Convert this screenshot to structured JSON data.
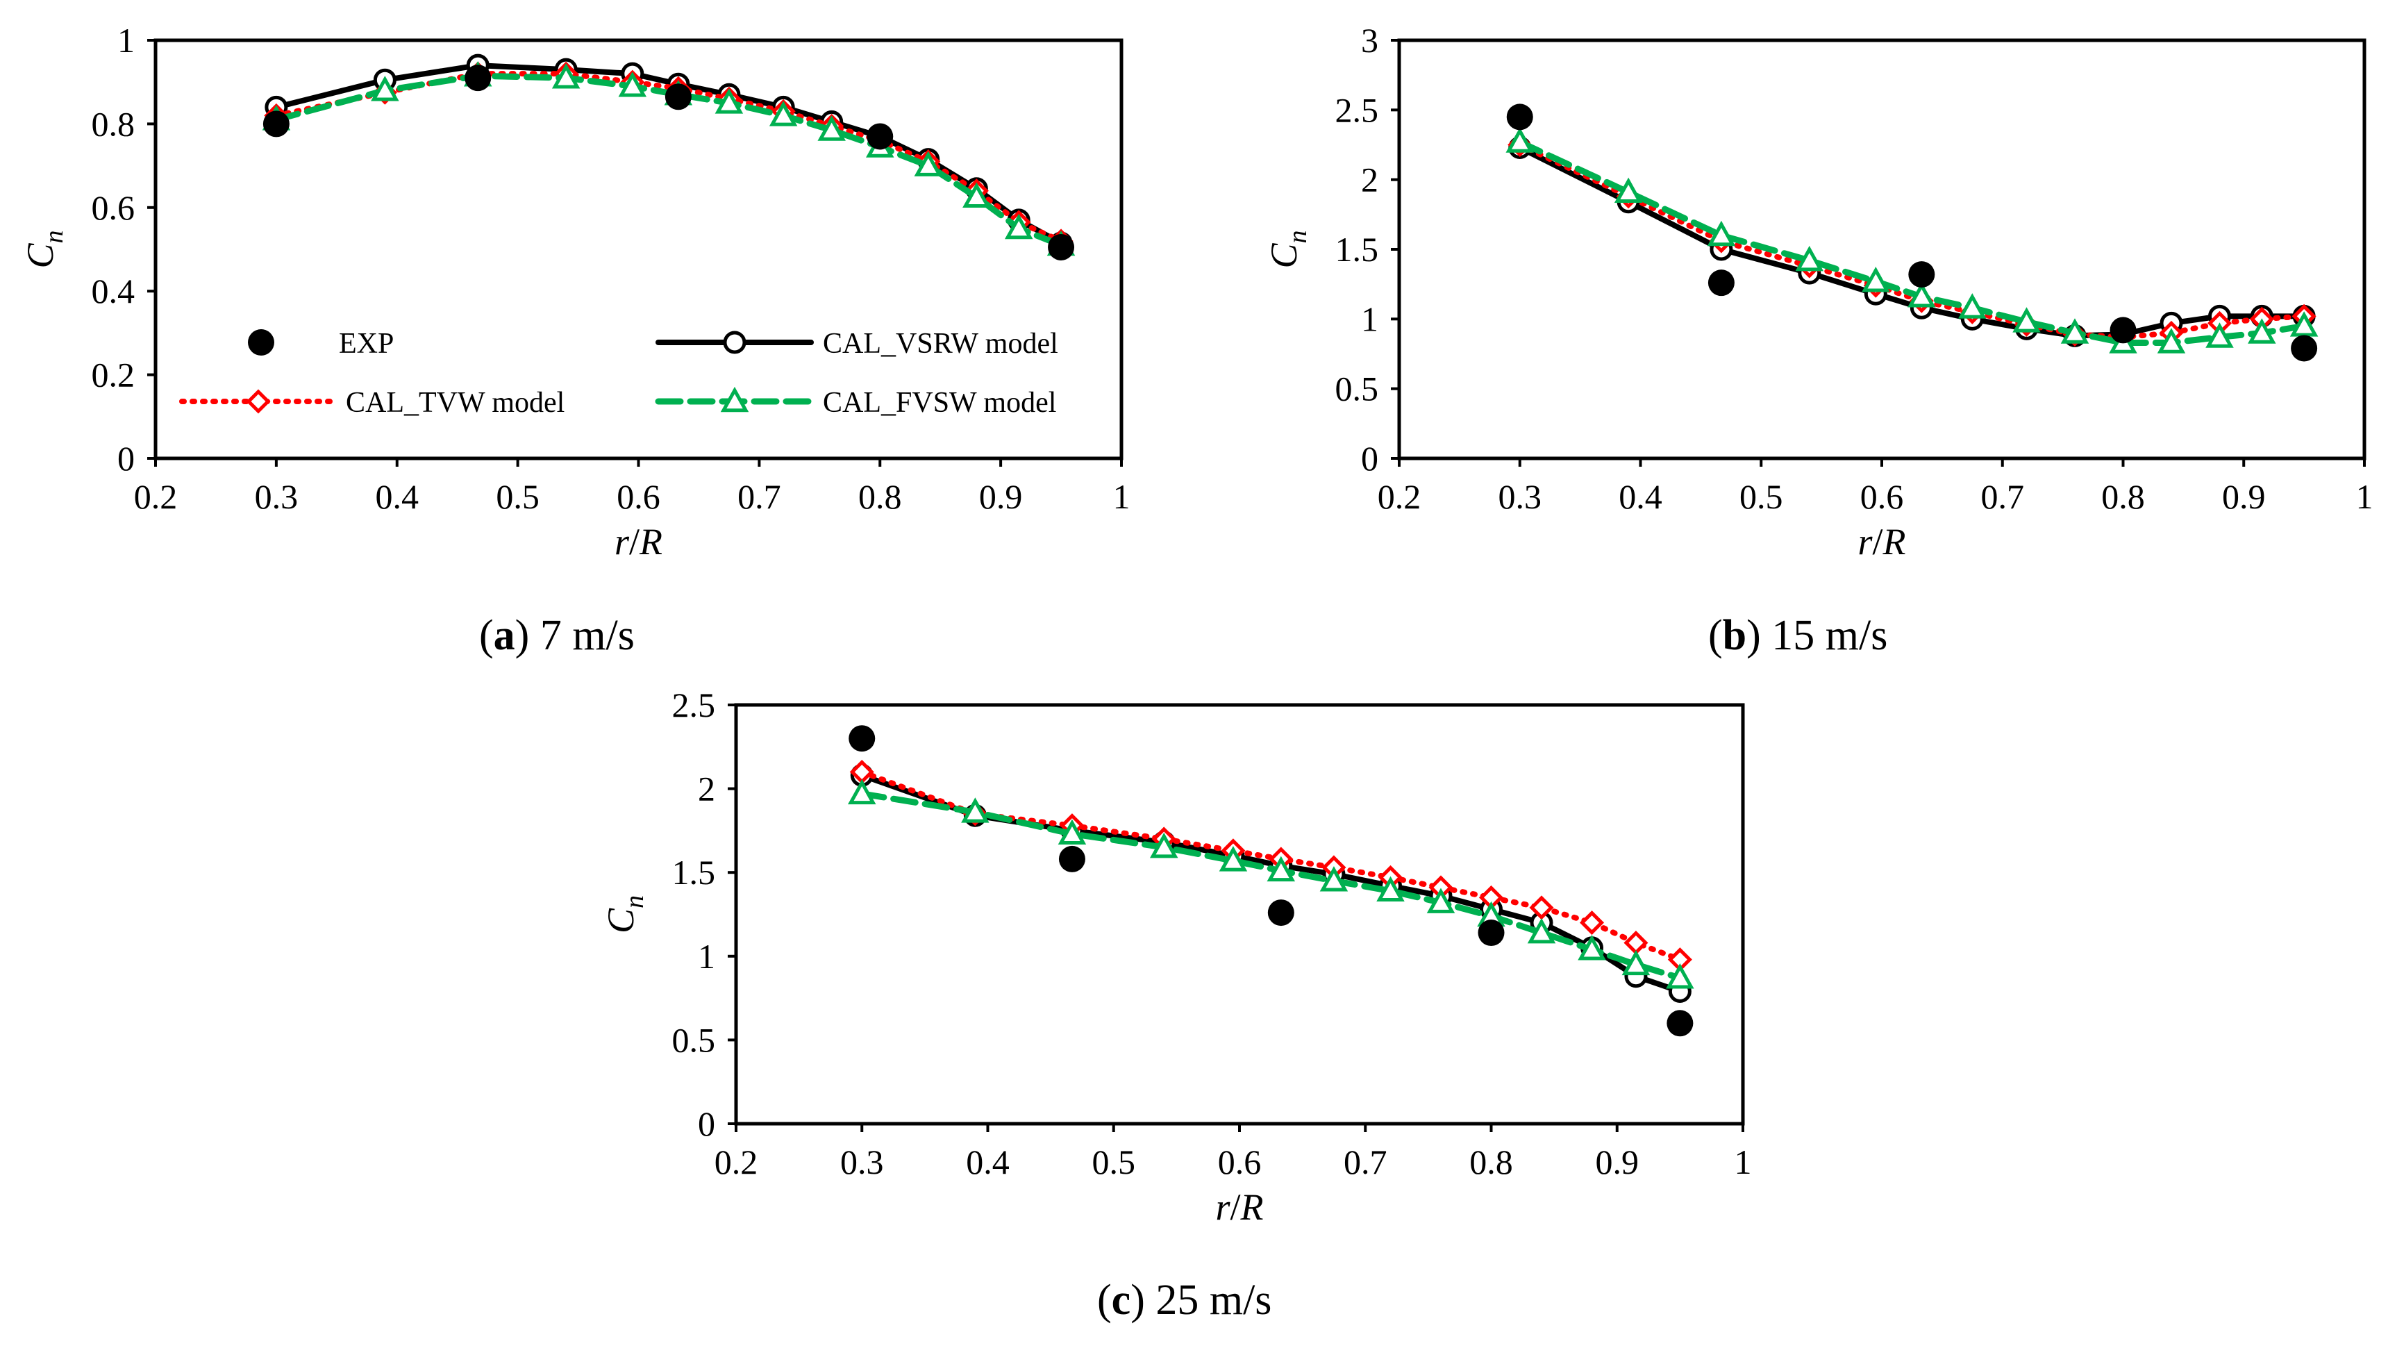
{
  "chart_data": [
    {
      "id": "a",
      "type": "line",
      "caption": {
        "letter": "a",
        "text": " 7 m/s"
      },
      "xlabel": {
        "main": "r",
        "slash": "/",
        "denominator": "R"
      },
      "ylabel": {
        "main": "C",
        "sub": "n"
      },
      "xlim": [
        0.2,
        1
      ],
      "ylim": [
        0,
        1
      ],
      "xticks": [
        "0.2",
        "0.3",
        "0.4",
        "0.5",
        "0.6",
        "0.7",
        "0.8",
        "0.9",
        "1"
      ],
      "xtick_values": [
        0.2,
        0.3,
        0.4,
        0.5,
        0.6,
        0.7,
        0.8,
        0.9,
        1
      ],
      "yticks": [
        "0",
        "0.2",
        "0.4",
        "0.6",
        "0.8",
        "1"
      ],
      "ytick_values": [
        0,
        0.2,
        0.4,
        0.6,
        0.8,
        1
      ],
      "legend": {
        "exp": "EXP",
        "vsrw": "CAL_VSRW model",
        "tvw": "CAL_TVW model",
        "fvsw": "CAL_FVSW model"
      },
      "series": [
        {
          "name": "EXP",
          "style": "exp",
          "color": "#000000",
          "x": [
            0.3,
            0.467,
            0.633,
            0.8,
            0.95
          ],
          "y": [
            0.8,
            0.91,
            0.865,
            0.77,
            0.505
          ]
        },
        {
          "name": "CAL_VSRW model",
          "style": "vsrw",
          "color": "#000000",
          "x": [
            0.3,
            0.39,
            0.467,
            0.54,
            0.595,
            0.633,
            0.675,
            0.72,
            0.76,
            0.8,
            0.84,
            0.88,
            0.915,
            0.95
          ],
          "y": [
            0.84,
            0.905,
            0.94,
            0.93,
            0.92,
            0.895,
            0.87,
            0.84,
            0.805,
            0.77,
            0.715,
            0.645,
            0.57,
            0.515
          ]
        },
        {
          "name": "CAL_TVW model",
          "style": "tvw",
          "color": "#ff0000",
          "x": [
            0.3,
            0.39,
            0.467,
            0.54,
            0.595,
            0.633,
            0.675,
            0.72,
            0.76,
            0.8,
            0.84,
            0.88,
            0.915,
            0.95
          ],
          "y": [
            0.82,
            0.875,
            0.92,
            0.92,
            0.9,
            0.885,
            0.86,
            0.83,
            0.795,
            0.76,
            0.71,
            0.64,
            0.565,
            0.52
          ]
        },
        {
          "name": "CAL_FVSW model",
          "style": "fvsw",
          "color": "#00b050",
          "x": [
            0.3,
            0.39,
            0.467,
            0.54,
            0.595,
            0.633,
            0.675,
            0.72,
            0.76,
            0.8,
            0.84,
            0.88,
            0.915,
            0.95
          ],
          "y": [
            0.81,
            0.88,
            0.915,
            0.91,
            0.89,
            0.87,
            0.85,
            0.82,
            0.785,
            0.745,
            0.7,
            0.625,
            0.55,
            0.51
          ]
        }
      ]
    },
    {
      "id": "b",
      "type": "line",
      "caption": {
        "letter": "b",
        "text": " 15 m/s"
      },
      "xlabel": {
        "main": "r",
        "slash": "/",
        "denominator": "R"
      },
      "ylabel": {
        "main": "C",
        "sub": "n"
      },
      "xlim": [
        0.2,
        1
      ],
      "ylim": [
        0,
        3
      ],
      "xticks": [
        "0.2",
        "0.3",
        "0.4",
        "0.5",
        "0.6",
        "0.7",
        "0.8",
        "0.9",
        "1"
      ],
      "xtick_values": [
        0.2,
        0.3,
        0.4,
        0.5,
        0.6,
        0.7,
        0.8,
        0.9,
        1
      ],
      "yticks": [
        "0",
        "0.5",
        "1",
        "1.5",
        "2",
        "2.5",
        "3"
      ],
      "ytick_values": [
        0,
        0.5,
        1,
        1.5,
        2,
        2.5,
        3
      ],
      "series": [
        {
          "name": "EXP",
          "style": "exp",
          "color": "#000000",
          "x": [
            0.3,
            0.467,
            0.633,
            0.8,
            0.95
          ],
          "y": [
            2.45,
            1.26,
            1.32,
            0.92,
            0.79
          ]
        },
        {
          "name": "CAL_VSRW model",
          "style": "vsrw",
          "color": "#000000",
          "x": [
            0.3,
            0.39,
            0.467,
            0.54,
            0.595,
            0.633,
            0.675,
            0.72,
            0.76,
            0.8,
            0.84,
            0.88,
            0.915,
            0.95
          ],
          "y": [
            2.23,
            1.84,
            1.5,
            1.33,
            1.18,
            1.08,
            1.0,
            0.93,
            0.88,
            0.89,
            0.97,
            1.02,
            1.02,
            1.02
          ]
        },
        {
          "name": "CAL_TVW model",
          "style": "tvw",
          "color": "#ff0000",
          "x": [
            0.3,
            0.39,
            0.467,
            0.54,
            0.595,
            0.633,
            0.675,
            0.72,
            0.76,
            0.8,
            0.84,
            0.88,
            0.915,
            0.95
          ],
          "y": [
            2.25,
            1.88,
            1.56,
            1.38,
            1.24,
            1.13,
            1.05,
            0.96,
            0.89,
            0.87,
            0.9,
            0.97,
            1.0,
            1.02
          ]
        },
        {
          "name": "CAL_FVSW model",
          "style": "fvsw",
          "color": "#00b050",
          "x": [
            0.3,
            0.39,
            0.467,
            0.54,
            0.595,
            0.633,
            0.675,
            0.72,
            0.76,
            0.8,
            0.84,
            0.88,
            0.915,
            0.95
          ],
          "y": [
            2.27,
            1.91,
            1.6,
            1.42,
            1.27,
            1.16,
            1.08,
            0.98,
            0.9,
            0.83,
            0.83,
            0.87,
            0.9,
            0.95
          ]
        }
      ]
    },
    {
      "id": "c",
      "type": "line",
      "caption": {
        "letter": "c",
        "text": " 25 m/s"
      },
      "xlabel": {
        "main": "r",
        "slash": "/",
        "denominator": "R"
      },
      "ylabel": {
        "main": "C",
        "sub": "n"
      },
      "xlim": [
        0.2,
        1
      ],
      "ylim": [
        0,
        2.5
      ],
      "xticks": [
        "0.2",
        "0.3",
        "0.4",
        "0.5",
        "0.6",
        "0.7",
        "0.8",
        "0.9",
        "1"
      ],
      "xtick_values": [
        0.2,
        0.3,
        0.4,
        0.5,
        0.6,
        0.7,
        0.8,
        0.9,
        1
      ],
      "yticks": [
        "0",
        "0.5",
        "1",
        "1.5",
        "2",
        "2.5"
      ],
      "ytick_values": [
        0,
        0.5,
        1,
        1.5,
        2,
        2.5
      ],
      "series": [
        {
          "name": "EXP",
          "style": "exp",
          "color": "#000000",
          "x": [
            0.3,
            0.467,
            0.633,
            0.8,
            0.95
          ],
          "y": [
            2.3,
            1.58,
            1.26,
            1.14,
            0.6
          ]
        },
        {
          "name": "CAL_VSRW model",
          "style": "vsrw",
          "color": "#000000",
          "x": [
            0.3,
            0.39,
            0.467,
            0.54,
            0.595,
            0.633,
            0.675,
            0.72,
            0.76,
            0.8,
            0.84,
            0.88,
            0.915,
            0.95
          ],
          "y": [
            2.08,
            1.84,
            1.75,
            1.68,
            1.6,
            1.54,
            1.49,
            1.42,
            1.36,
            1.28,
            1.2,
            1.05,
            0.88,
            0.79
          ]
        },
        {
          "name": "CAL_TVW model",
          "style": "tvw",
          "color": "#ff0000",
          "x": [
            0.3,
            0.39,
            0.467,
            0.54,
            0.595,
            0.633,
            0.675,
            0.72,
            0.76,
            0.8,
            0.84,
            0.88,
            0.915,
            0.95
          ],
          "y": [
            2.1,
            1.85,
            1.78,
            1.7,
            1.63,
            1.58,
            1.53,
            1.47,
            1.41,
            1.35,
            1.29,
            1.2,
            1.08,
            0.98
          ]
        },
        {
          "name": "CAL_FVSW model",
          "style": "fvsw",
          "color": "#00b050",
          "x": [
            0.3,
            0.39,
            0.467,
            0.54,
            0.595,
            0.633,
            0.675,
            0.72,
            0.76,
            0.8,
            0.84,
            0.88,
            0.915,
            0.95
          ],
          "y": [
            1.97,
            1.86,
            1.73,
            1.65,
            1.57,
            1.51,
            1.45,
            1.39,
            1.32,
            1.24,
            1.14,
            1.04,
            0.95,
            0.87
          ]
        }
      ]
    }
  ]
}
